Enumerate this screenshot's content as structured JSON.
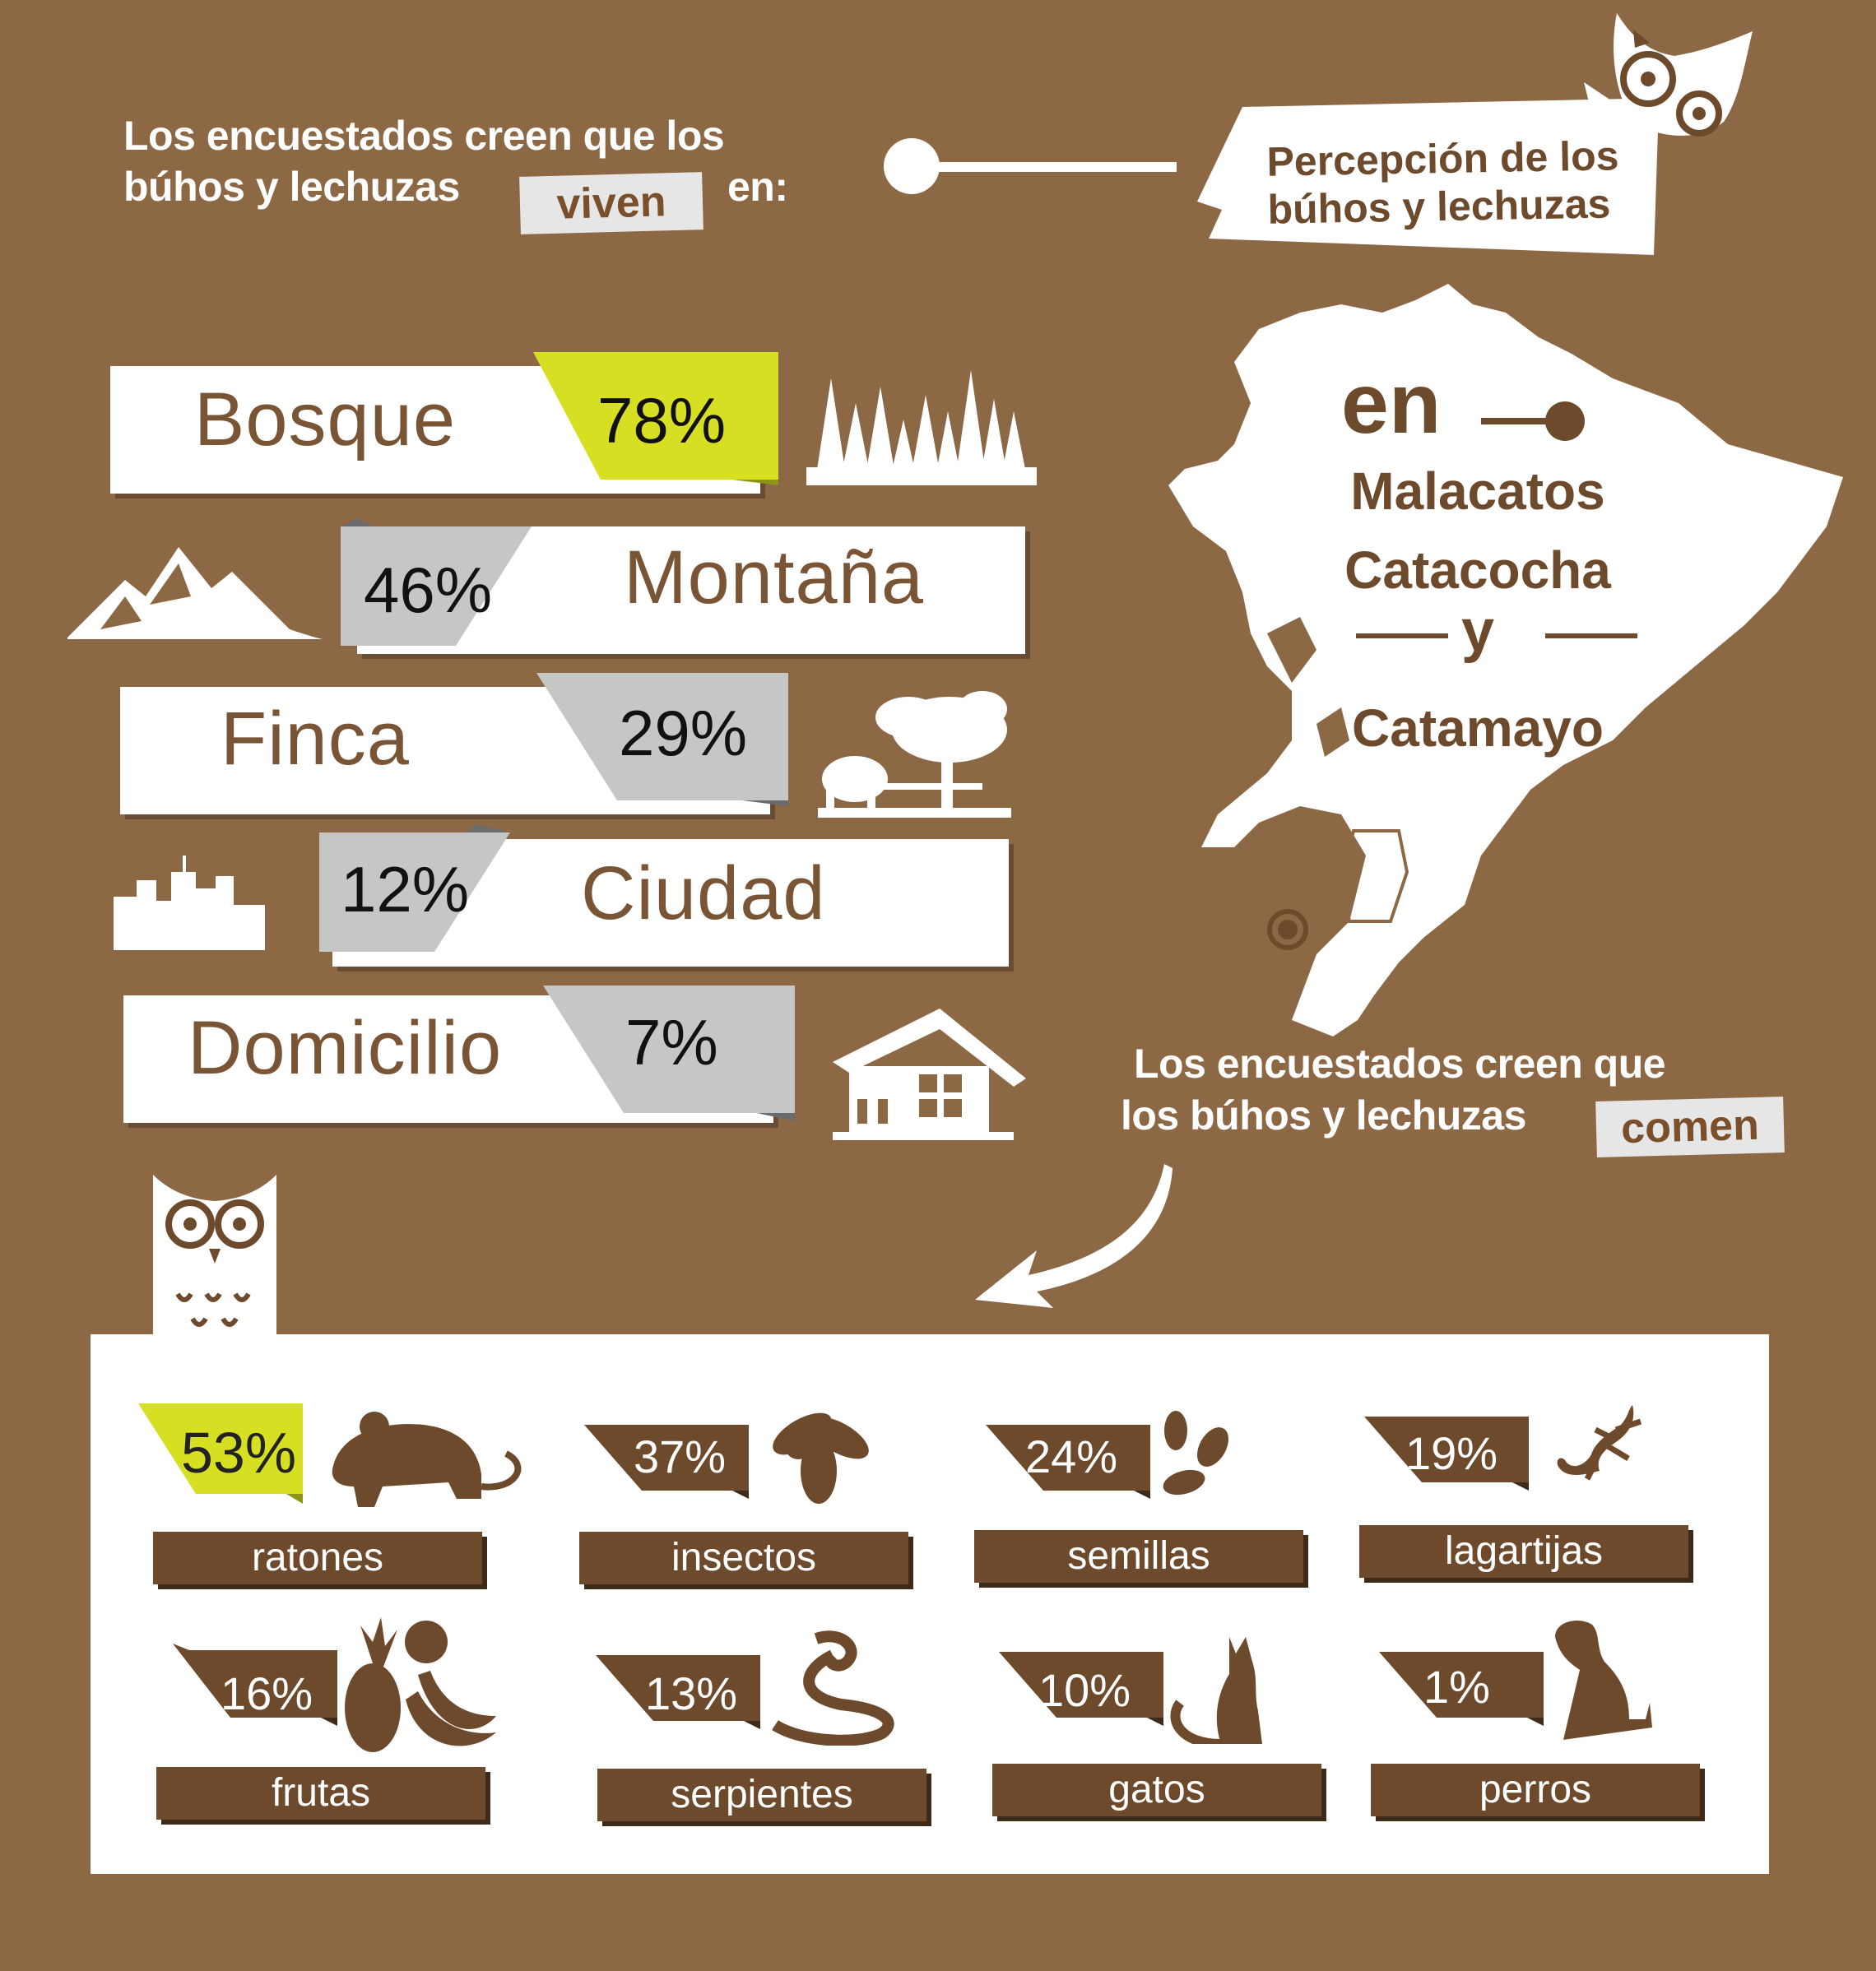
{
  "colors": {
    "background": "#8c6845",
    "brown": "#6e4a2c",
    "lime": "#d6df22",
    "grey": "#c6c6c6",
    "white": "#ffffff"
  },
  "header": {
    "line1": "Los encuestados creen que los",
    "line2": "búhos y lechuzas",
    "highlight": "viven",
    "tail": "en:"
  },
  "title_card": {
    "line1": "Percepción de los",
    "line2": "búhos y lechuzas"
  },
  "habitats": [
    {
      "label": "Bosque",
      "percent": "78%",
      "highlight": "lime",
      "icon": "forest-icon"
    },
    {
      "label": "Montaña",
      "percent": "46%",
      "highlight": "grey",
      "icon": "mountain-icon"
    },
    {
      "label": "Finca",
      "percent": "29%",
      "highlight": "grey",
      "icon": "farm-icon"
    },
    {
      "label": "Ciudad",
      "percent": "12%",
      "highlight": "grey",
      "icon": "city-icon"
    },
    {
      "label": "Domicilio",
      "percent": "7%",
      "highlight": "grey",
      "icon": "house-icon"
    }
  ],
  "map": {
    "en": "en",
    "place1": "Malacatos",
    "place2": "Catacocha",
    "conjunction": "y",
    "place3": "Catamayo"
  },
  "eat_header": {
    "line1": "Los encuestados creen que",
    "line2": "los búhos y lechuzas",
    "highlight": "comen"
  },
  "foods": [
    {
      "label": "ratones",
      "percent": "53%",
      "highlight": "lime",
      "icon": "mouse-icon"
    },
    {
      "label": "insectos",
      "percent": "37%",
      "highlight": "brown",
      "icon": "fly-icon"
    },
    {
      "label": "semillas",
      "percent": "24%",
      "highlight": "brown",
      "icon": "seeds-icon"
    },
    {
      "label": "lagartijas",
      "percent": "19%",
      "highlight": "brown",
      "icon": "lizard-icon"
    },
    {
      "label": "frutas",
      "percent": "16%",
      "highlight": "brown",
      "icon": "fruits-icon"
    },
    {
      "label": "serpientes",
      "percent": "13%",
      "highlight": "brown",
      "icon": "snake-icon"
    },
    {
      "label": "gatos",
      "percent": "10%",
      "highlight": "brown",
      "icon": "cat-icon"
    },
    {
      "label": "perros",
      "percent": "1%",
      "highlight": "brown",
      "icon": "dog-icon"
    }
  ]
}
